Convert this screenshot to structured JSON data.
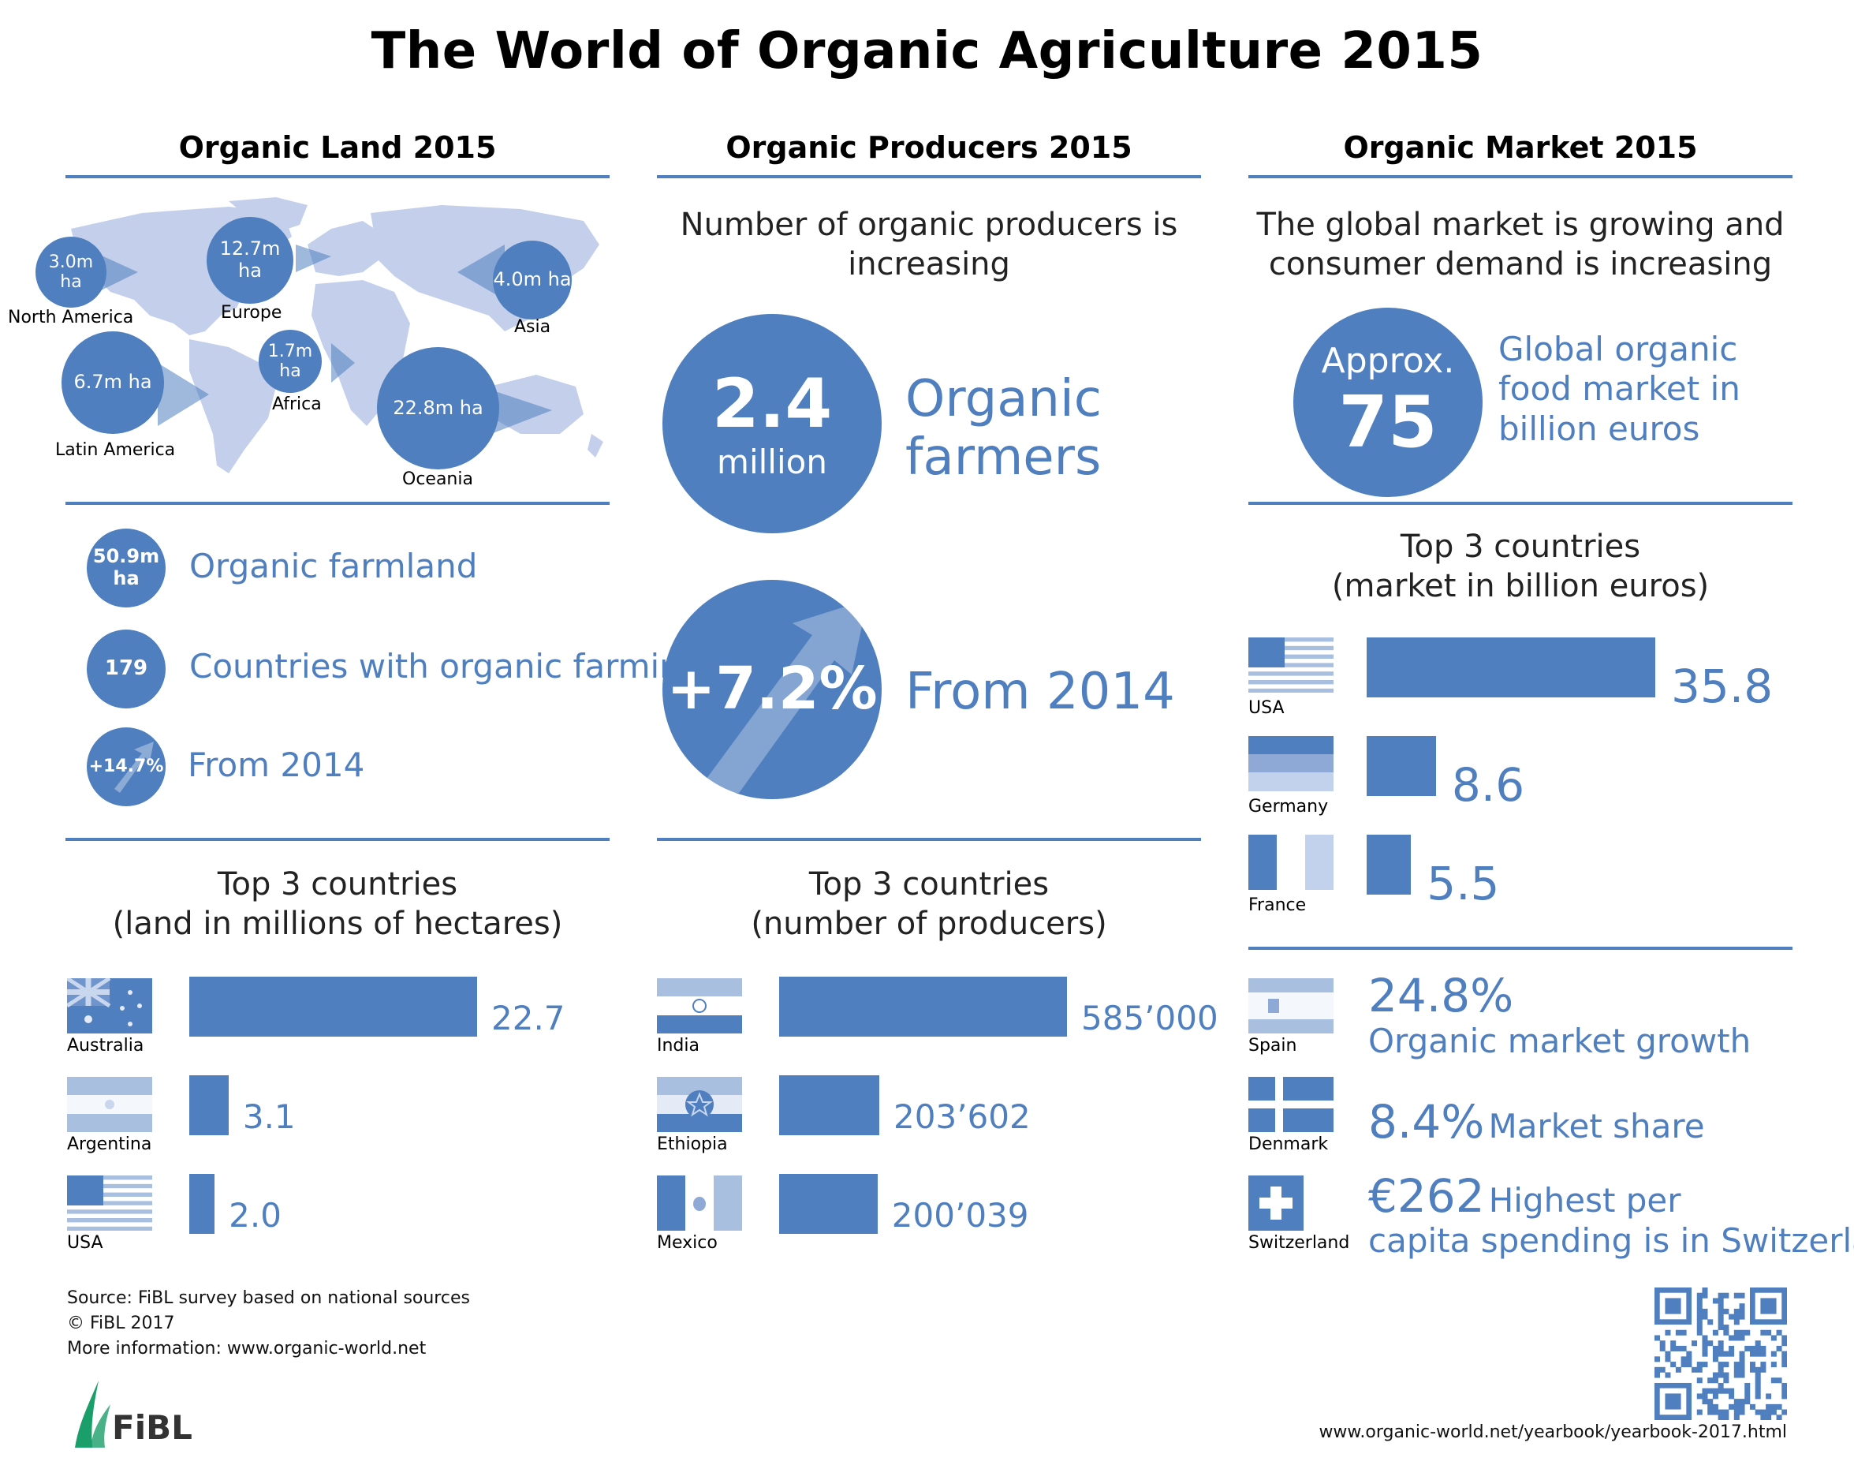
{
  "title": "The World of Organic Agriculture 2015",
  "colors": {
    "accent": "#4f7fbf",
    "light": "#a9bfe0",
    "map": "#c3cfeb"
  },
  "land": {
    "heading": "Organic Land 2015",
    "regions": [
      {
        "value": "3.0m ha",
        "name": "North America"
      },
      {
        "value": "12.7m ha",
        "name": "Europe"
      },
      {
        "value": "4.0m ha",
        "name": "Asia"
      },
      {
        "value": "6.7m ha",
        "name": "Latin America"
      },
      {
        "value": "1.7m ha",
        "name": "Africa"
      },
      {
        "value": "22.8m ha",
        "name": "Oceania"
      }
    ],
    "stats": [
      {
        "badge": "50.9m ha",
        "text": "Organic farmland"
      },
      {
        "badge": "179",
        "text": "Countries with organic farming"
      },
      {
        "badge": "+14.7%",
        "text": "From 2014"
      }
    ],
    "top_heading_1": "Top 3 countries",
    "top_heading_2": "(land in millions of hectares)"
  },
  "producers": {
    "heading": "Organic Producers 2015",
    "subtitle_1": "Number of organic producers is",
    "subtitle_2": "increasing",
    "big_value": "2.4",
    "big_unit": "million",
    "big_label_1": "Organic",
    "big_label_2": "farmers",
    "growth_value": "+7.2%",
    "growth_label": "From 2014",
    "top_heading_1": "Top 3 countries",
    "top_heading_2": "(number of producers)"
  },
  "market": {
    "heading": "Organic Market 2015",
    "subtitle_1": "The global market is growing and",
    "subtitle_2": "consumer demand is increasing",
    "approx_label": "Approx.",
    "approx_value": "75",
    "approx_text_1": "Global organic",
    "approx_text_2": "food market in",
    "approx_text_3": "billion euros",
    "top_heading_1": "Top 3 countries",
    "top_heading_2": "(market in billion euros)",
    "facts": [
      {
        "country": "Spain",
        "big": "24.8%",
        "text": "Organic market growth"
      },
      {
        "country": "Denmark",
        "big": "8.4%",
        "text": "Market share"
      },
      {
        "country": "Switzerland",
        "big": "€262",
        "text": "Highest per",
        "text2": "capita spending is in Switzerland"
      }
    ]
  },
  "chart_data": [
    {
      "type": "bar",
      "title": "Top 3 countries (land in millions of hectares)",
      "categories": [
        "Australia",
        "Argentina",
        "USA"
      ],
      "values": [
        22.7,
        3.1,
        2.0
      ],
      "labels": [
        "22.7",
        "3.1",
        "2.0"
      ]
    },
    {
      "type": "bar",
      "title": "Top 3 countries (number of producers)",
      "categories": [
        "India",
        "Ethiopia",
        "Mexico"
      ],
      "values": [
        585000,
        203602,
        200039
      ],
      "labels": [
        "585’000",
        "203’602",
        "200’039"
      ]
    },
    {
      "type": "bar",
      "title": "Top 3 countries (market in billion euros)",
      "categories": [
        "USA",
        "Germany",
        "France"
      ],
      "values": [
        35.8,
        8.6,
        5.5
      ],
      "labels": [
        "35.8",
        "8.6",
        "5.5"
      ]
    }
  ],
  "footer": {
    "source": "Source: FiBL survey based on national sources",
    "copyright": "© FiBL 2017",
    "more_info": "More information: www.organic-world.net",
    "logo_text": "FiBL",
    "url": "www.organic-world.net/yearbook/yearbook-2017.html"
  }
}
